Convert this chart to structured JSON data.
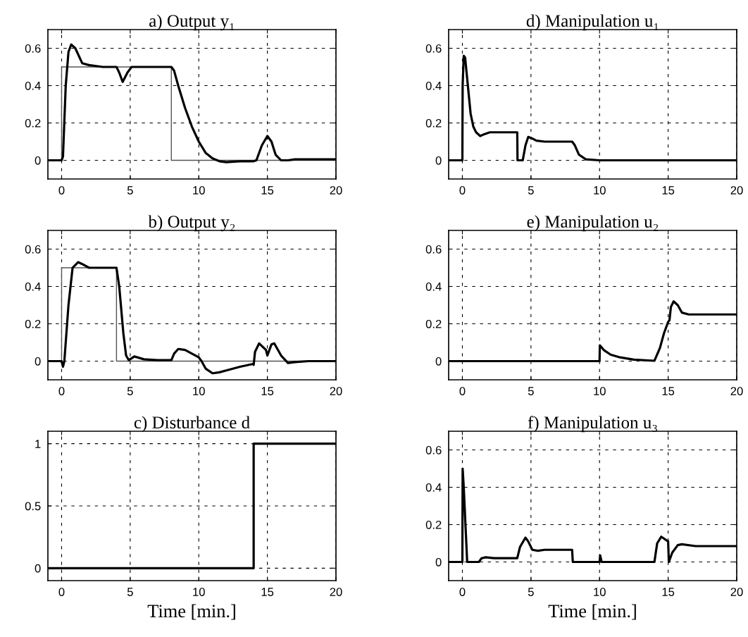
{
  "chart_data": [
    {
      "type": "line",
      "title": "a) Output y₁",
      "xlim": [
        -1,
        20
      ],
      "ylim": [
        -0.1,
        0.7
      ],
      "xticks": [
        0,
        5,
        10,
        15,
        20
      ],
      "yticks": [
        0,
        0.2,
        0.4,
        0.6
      ],
      "grid": true,
      "line_style": "solid",
      "series": [
        {
          "color": "#555555",
          "x": [
            -1,
            0,
            0,
            8,
            8,
            20
          ],
          "values": [
            0,
            0,
            0.5,
            0.5,
            0,
            0
          ]
        },
        {
          "color": "#000000",
          "x": [
            -1,
            0,
            0.1,
            0.3,
            0.5,
            0.7,
            1.0,
            1.5,
            2,
            3,
            4,
            4.2,
            4.45,
            4.8,
            5.1,
            6,
            8,
            8.2,
            8.5,
            9,
            9.5,
            10,
            10.5,
            11,
            11.5,
            12,
            13,
            14,
            14.2,
            14.6,
            15,
            15.3,
            15.6,
            16,
            16.5,
            17,
            18,
            20
          ],
          "values": [
            0,
            0,
            0.02,
            0.4,
            0.58,
            0.62,
            0.6,
            0.52,
            0.51,
            0.5,
            0.5,
            0.47,
            0.42,
            0.47,
            0.5,
            0.5,
            0.5,
            0.48,
            0.4,
            0.28,
            0.18,
            0.1,
            0.04,
            0.01,
            -0.005,
            -0.01,
            -0.005,
            -0.005,
            0,
            0.08,
            0.13,
            0.1,
            0.03,
            0,
            0,
            0.005,
            0.005,
            0.005
          ]
        }
      ]
    },
    {
      "type": "line",
      "title": "b) Output y₂",
      "xlim": [
        -1,
        20
      ],
      "ylim": [
        -0.1,
        0.7
      ],
      "xticks": [
        0,
        5,
        10,
        15,
        20
      ],
      "yticks": [
        0,
        0.2,
        0.4,
        0.6
      ],
      "grid": true,
      "line_style": "solid",
      "series": [
        {
          "color": "#555555",
          "x": [
            -1,
            0,
            0,
            4,
            4,
            20
          ],
          "values": [
            0,
            0,
            0.5,
            0.5,
            0,
            0
          ]
        },
        {
          "color": "#000000",
          "x": [
            -1,
            0,
            0.1,
            0.2,
            0.5,
            0.8,
            1.2,
            1.5,
            2,
            4,
            4.2,
            4.5,
            4.7,
            4.9,
            5.3,
            6,
            7,
            8,
            8.2,
            8.5,
            9,
            9.5,
            10,
            10.2,
            10.5,
            11,
            11.5,
            12,
            13,
            13.95,
            14,
            14.1,
            14.4,
            14.9,
            15,
            15.3,
            15.5,
            16,
            16.5,
            17,
            18,
            20
          ],
          "values": [
            0,
            0,
            -0.03,
            0,
            0.3,
            0.5,
            0.53,
            0.52,
            0.5,
            0.5,
            0.4,
            0.15,
            0.03,
            0.005,
            0.025,
            0.01,
            0.005,
            0.005,
            0.04,
            0.065,
            0.06,
            0.04,
            0.02,
            0,
            -0.04,
            -0.065,
            -0.06,
            -0.05,
            -0.03,
            -0.015,
            -0.02,
            0.05,
            0.095,
            0.06,
            0.03,
            0.09,
            0.095,
            0.03,
            -0.01,
            -0.005,
            0,
            0
          ]
        }
      ]
    },
    {
      "type": "line",
      "title": "c) Disturbance d",
      "xlabel": "Time [min.]",
      "xlim": [
        -1,
        20
      ],
      "ylim": [
        -0.1,
        1.1
      ],
      "xticks": [
        0,
        5,
        10,
        15,
        20
      ],
      "yticks": [
        0,
        0.5,
        1
      ],
      "grid": true,
      "line_style": "solid",
      "series": [
        {
          "color": "#000000",
          "x": [
            -1,
            14,
            14,
            20
          ],
          "values": [
            0,
            0,
            1,
            1
          ]
        }
      ]
    },
    {
      "type": "line",
      "title": "d) Manipulation u₁",
      "xlim": [
        -1,
        20
      ],
      "ylim": [
        -0.1,
        0.7
      ],
      "xticks": [
        0,
        5,
        10,
        15,
        20
      ],
      "yticks": [
        0,
        0.2,
        0.4,
        0.6
      ],
      "grid": true,
      "line_style": "solid",
      "series": [
        {
          "color": "#000000",
          "x": [
            -1,
            0,
            0.02,
            0.1,
            0.2,
            0.4,
            0.6,
            0.8,
            1.0,
            1.3,
            1.6,
            2,
            4,
            4.02,
            4.4,
            4.6,
            4.8,
            5,
            5.4,
            6,
            8,
            8.2,
            8.5,
            9,
            10,
            20
          ],
          "values": [
            0,
            0,
            0.4,
            0.56,
            0.55,
            0.4,
            0.25,
            0.18,
            0.15,
            0.13,
            0.14,
            0.15,
            0.15,
            0,
            0,
            0.08,
            0.125,
            0.12,
            0.105,
            0.1,
            0.1,
            0.08,
            0.03,
            0.005,
            0,
            0
          ]
        }
      ]
    },
    {
      "type": "line",
      "title": "e) Manipulation u₂",
      "xlim": [
        -1,
        20
      ],
      "ylim": [
        -0.1,
        0.7
      ],
      "xticks": [
        0,
        5,
        10,
        15,
        20
      ],
      "yticks": [
        0,
        0.2,
        0.4,
        0.6
      ],
      "grid": true,
      "line_style": "solid",
      "series": [
        {
          "color": "#000000",
          "x": [
            -1,
            10,
            10.02,
            10.3,
            10.8,
            11.5,
            12.5,
            14,
            14.4,
            14.7,
            15,
            15.1,
            15.2,
            15.4,
            15.7,
            16,
            16.5,
            17,
            20
          ],
          "values": [
            0,
            0,
            0.085,
            0.06,
            0.035,
            0.02,
            0.008,
            0.002,
            0.07,
            0.15,
            0.21,
            0.22,
            0.29,
            0.32,
            0.3,
            0.26,
            0.25,
            0.25,
            0.25
          ]
        }
      ]
    },
    {
      "type": "line",
      "title": "f) Manipulation u₃",
      "xlabel": "Time [min.]",
      "xlim": [
        -1,
        20
      ],
      "ylim": [
        -0.1,
        0.7
      ],
      "xticks": [
        0,
        5,
        10,
        15,
        20
      ],
      "yticks": [
        0,
        0.2,
        0.4,
        0.6
      ],
      "grid": true,
      "line_style": "solid",
      "series": [
        {
          "color": "#000000",
          "x": [
            -1,
            0,
            0.02,
            0.1,
            0.35,
            1.2,
            1.4,
            1.7,
            2.3,
            4,
            4.2,
            4.6,
            4.8,
            5.1,
            5.5,
            6,
            8,
            8.05,
            10,
            10.05,
            10.15,
            14,
            14.2,
            14.5,
            14.8,
            15,
            15.05,
            15.3,
            15.7,
            16,
            17,
            20
          ],
          "values": [
            0,
            0,
            0.5,
            0.4,
            0,
            0,
            0.02,
            0.025,
            0.02,
            0.02,
            0.08,
            0.13,
            0.11,
            0.065,
            0.06,
            0.065,
            0.065,
            0,
            0,
            0.035,
            0,
            0,
            0.1,
            0.135,
            0.12,
            0.11,
            0,
            0.05,
            0.09,
            0.095,
            0.085,
            0.085
          ]
        }
      ]
    }
  ]
}
